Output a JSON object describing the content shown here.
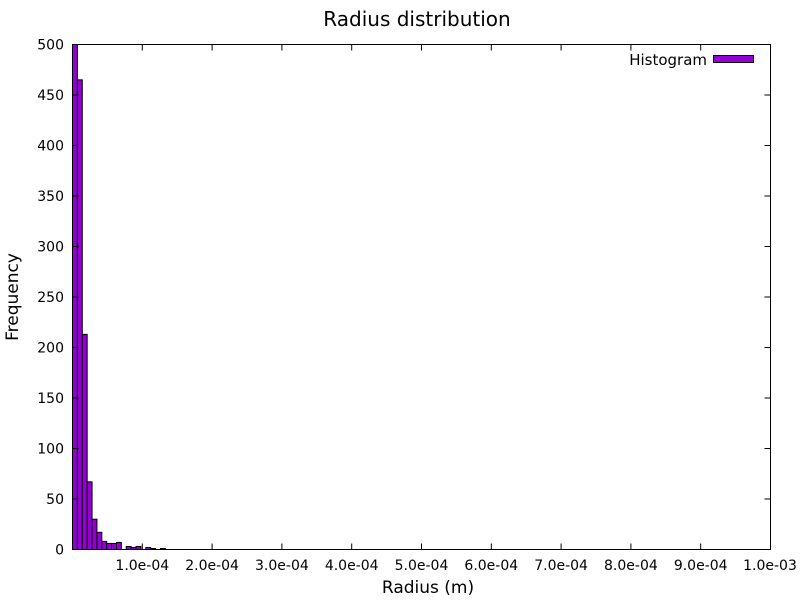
{
  "chart_data": {
    "type": "bar",
    "title": "Radius distribution",
    "xlabel": "Radius (m)",
    "ylabel": "Frequency",
    "xlim": [
      0,
      0.001
    ],
    "ylim": [
      0,
      500
    ],
    "bin_width": 7e-06,
    "x_ticks": [
      {
        "value": 0.0001,
        "label": "1.0e-04"
      },
      {
        "value": 0.0002,
        "label": "2.0e-04"
      },
      {
        "value": 0.0003,
        "label": "3.0e-04"
      },
      {
        "value": 0.0004,
        "label": "4.0e-04"
      },
      {
        "value": 0.0005,
        "label": "5.0e-04"
      },
      {
        "value": 0.0006,
        "label": "6.0e-04"
      },
      {
        "value": 0.0007,
        "label": "7.0e-04"
      },
      {
        "value": 0.0008,
        "label": "8.0e-04"
      },
      {
        "value": 0.0009,
        "label": "9.0e-04"
      },
      {
        "value": 0.001,
        "label": "1.0e-03"
      }
    ],
    "y_ticks": [
      {
        "value": 0,
        "label": "0"
      },
      {
        "value": 50,
        "label": "50"
      },
      {
        "value": 100,
        "label": "100"
      },
      {
        "value": 150,
        "label": "150"
      },
      {
        "value": 200,
        "label": "200"
      },
      {
        "value": 250,
        "label": "250"
      },
      {
        "value": 300,
        "label": "300"
      },
      {
        "value": 350,
        "label": "350"
      },
      {
        "value": 400,
        "label": "400"
      },
      {
        "value": 450,
        "label": "450"
      },
      {
        "value": 500,
        "label": "500"
      }
    ],
    "series": [
      {
        "name": "Histogram",
        "color": "#9400d3",
        "bins": [
          {
            "x": 3.5e-06,
            "y": 500
          },
          {
            "x": 1.05e-05,
            "y": 465
          },
          {
            "x": 1.75e-05,
            "y": 213
          },
          {
            "x": 2.45e-05,
            "y": 67
          },
          {
            "x": 3.15e-05,
            "y": 30
          },
          {
            "x": 3.85e-05,
            "y": 17
          },
          {
            "x": 4.55e-05,
            "y": 8
          },
          {
            "x": 5.25e-05,
            "y": 6
          },
          {
            "x": 5.95e-05,
            "y": 6
          },
          {
            "x": 6.65e-05,
            "y": 7
          },
          {
            "x": 7.35e-05,
            "y": 0
          },
          {
            "x": 8.05e-05,
            "y": 3
          },
          {
            "x": 8.75e-05,
            "y": 2
          },
          {
            "x": 9.45e-05,
            "y": 3
          },
          {
            "x": 0.0001015,
            "y": 0
          },
          {
            "x": 0.0001085,
            "y": 2
          },
          {
            "x": 0.0001155,
            "y": 1
          },
          {
            "x": 0.0001225,
            "y": 0
          },
          {
            "x": 0.0001295,
            "y": 1
          }
        ]
      }
    ],
    "legend": {
      "position": "top-right"
    },
    "grid": false
  }
}
